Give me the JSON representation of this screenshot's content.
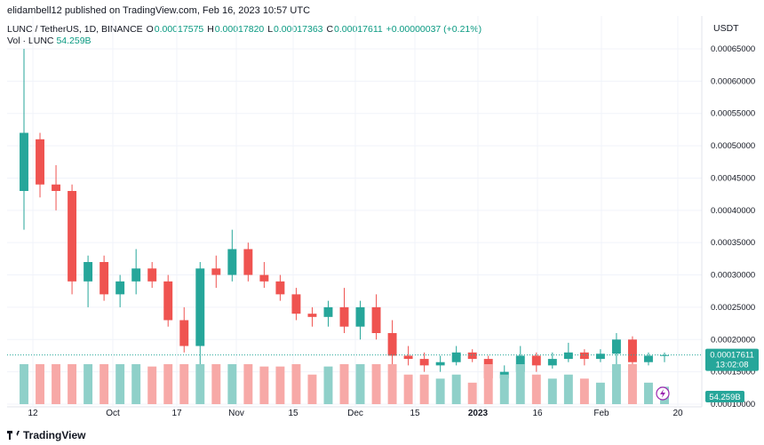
{
  "header": {
    "text": "elidambell12 published on TradingView.com, Feb 16, 2023 10:57 UTC"
  },
  "legend": {
    "symbol": "LUNC / TetherUS, 1D, BINANCE",
    "o_label": "O",
    "o_value": "0.00017575",
    "h_label": "H",
    "h_value": "0.00017820",
    "l_label": "L",
    "l_value": "0.00017363",
    "c_label": "C",
    "c_value": "0.00017611",
    "change": "+0.00000037 (+0.21%)"
  },
  "volume": {
    "label": "Vol · LUNC",
    "value": "54.259B"
  },
  "currency": "USDT",
  "footer": {
    "brand": "TradingView"
  },
  "colors": {
    "up": "#26a69a",
    "down": "#ef5350",
    "up_vol": "#8fd0c9",
    "down_vol": "#f7a9a7",
    "axis_text": "#131722"
  },
  "chart_data": {
    "type": "candlestick",
    "x_tick_labels": [
      "12",
      "Oct",
      "17",
      "Nov",
      "15",
      "Dec",
      "15",
      "2023",
      "16",
      "Feb",
      "20"
    ],
    "y_tick_labels": [
      "0.00010000",
      "0.00015000",
      "0.00020000",
      "0.00025000",
      "0.00030000",
      "0.00035000",
      "0.00040000",
      "0.00045000",
      "0.00050000",
      "0.00055000",
      "0.00060000",
      "0.00065000"
    ],
    "last_price_label": "0.00017611",
    "countdown_label": "13:02:08",
    "volume_label": "54.259B",
    "ylim": [
      0.0001,
      0.00065
    ],
    "grid": true,
    "candles_approx": [
      {
        "o": 0.00043,
        "h": 0.00065,
        "l": 0.00037,
        "c": 0.00052
      },
      {
        "o": 0.00051,
        "h": 0.00052,
        "l": 0.00042,
        "c": 0.00044
      },
      {
        "o": 0.00044,
        "h": 0.00047,
        "l": 0.0004,
        "c": 0.00043
      },
      {
        "o": 0.00043,
        "h": 0.00044,
        "l": 0.00027,
        "c": 0.00029
      },
      {
        "o": 0.00029,
        "h": 0.00033,
        "l": 0.00025,
        "c": 0.00032
      },
      {
        "o": 0.00032,
        "h": 0.00033,
        "l": 0.00026,
        "c": 0.00027
      },
      {
        "o": 0.00027,
        "h": 0.0003,
        "l": 0.00025,
        "c": 0.00029
      },
      {
        "o": 0.00029,
        "h": 0.00034,
        "l": 0.00027,
        "c": 0.00031
      },
      {
        "o": 0.00031,
        "h": 0.00032,
        "l": 0.00028,
        "c": 0.00029
      },
      {
        "o": 0.00029,
        "h": 0.0003,
        "l": 0.00022,
        "c": 0.00023
      },
      {
        "o": 0.00023,
        "h": 0.00025,
        "l": 0.00018,
        "c": 0.00019
      },
      {
        "o": 0.00019,
        "h": 0.00032,
        "l": 0.00015,
        "c": 0.00031
      },
      {
        "o": 0.00031,
        "h": 0.00033,
        "l": 0.00028,
        "c": 0.0003
      },
      {
        "o": 0.0003,
        "h": 0.00037,
        "l": 0.00029,
        "c": 0.00034
      },
      {
        "o": 0.00034,
        "h": 0.00035,
        "l": 0.00029,
        "c": 0.0003
      },
      {
        "o": 0.0003,
        "h": 0.00032,
        "l": 0.00028,
        "c": 0.00029
      },
      {
        "o": 0.00029,
        "h": 0.0003,
        "l": 0.00026,
        "c": 0.00027
      },
      {
        "o": 0.00027,
        "h": 0.00028,
        "l": 0.00023,
        "c": 0.00024
      },
      {
        "o": 0.00024,
        "h": 0.00025,
        "l": 0.00022,
        "c": 0.000235
      },
      {
        "o": 0.000235,
        "h": 0.00026,
        "l": 0.00022,
        "c": 0.00025
      },
      {
        "o": 0.00025,
        "h": 0.00028,
        "l": 0.00021,
        "c": 0.00022
      },
      {
        "o": 0.00022,
        "h": 0.00026,
        "l": 0.0002,
        "c": 0.00025
      },
      {
        "o": 0.00025,
        "h": 0.00027,
        "l": 0.0002,
        "c": 0.00021
      },
      {
        "o": 0.00021,
        "h": 0.00023,
        "l": 0.00015,
        "c": 0.000175
      },
      {
        "o": 0.000175,
        "h": 0.00019,
        "l": 0.00016,
        "c": 0.00017
      },
      {
        "o": 0.00017,
        "h": 0.00018,
        "l": 0.00015,
        "c": 0.00016
      },
      {
        "o": 0.00016,
        "h": 0.000175,
        "l": 0.00015,
        "c": 0.000165
      },
      {
        "o": 0.000165,
        "h": 0.00019,
        "l": 0.00016,
        "c": 0.00018
      },
      {
        "o": 0.00018,
        "h": 0.000185,
        "l": 0.000165,
        "c": 0.00017
      },
      {
        "o": 0.00017,
        "h": 0.000175,
        "l": 0.000125,
        "c": 0.00014
      },
      {
        "o": 0.00014,
        "h": 0.00016,
        "l": 0.00013,
        "c": 0.00015
      },
      {
        "o": 0.00015,
        "h": 0.00019,
        "l": 0.00014,
        "c": 0.000175
      },
      {
        "o": 0.000175,
        "h": 0.00018,
        "l": 0.00015,
        "c": 0.00016
      },
      {
        "o": 0.00016,
        "h": 0.00018,
        "l": 0.000155,
        "c": 0.00017
      },
      {
        "o": 0.00017,
        "h": 0.000195,
        "l": 0.000165,
        "c": 0.00018
      },
      {
        "o": 0.00018,
        "h": 0.000185,
        "l": 0.00016,
        "c": 0.00017
      },
      {
        "o": 0.00017,
        "h": 0.000185,
        "l": 0.000165,
        "c": 0.000178
      },
      {
        "o": 0.000178,
        "h": 0.00021,
        "l": 0.000155,
        "c": 0.0002
      },
      {
        "o": 0.0002,
        "h": 0.000205,
        "l": 0.00016,
        "c": 0.000165
      },
      {
        "o": 0.000165,
        "h": 0.00018,
        "l": 0.00016,
        "c": 0.000175
      },
      {
        "o": 0.000175,
        "h": 0.00018,
        "l": 0.000165,
        "c": 0.000176
      }
    ]
  }
}
